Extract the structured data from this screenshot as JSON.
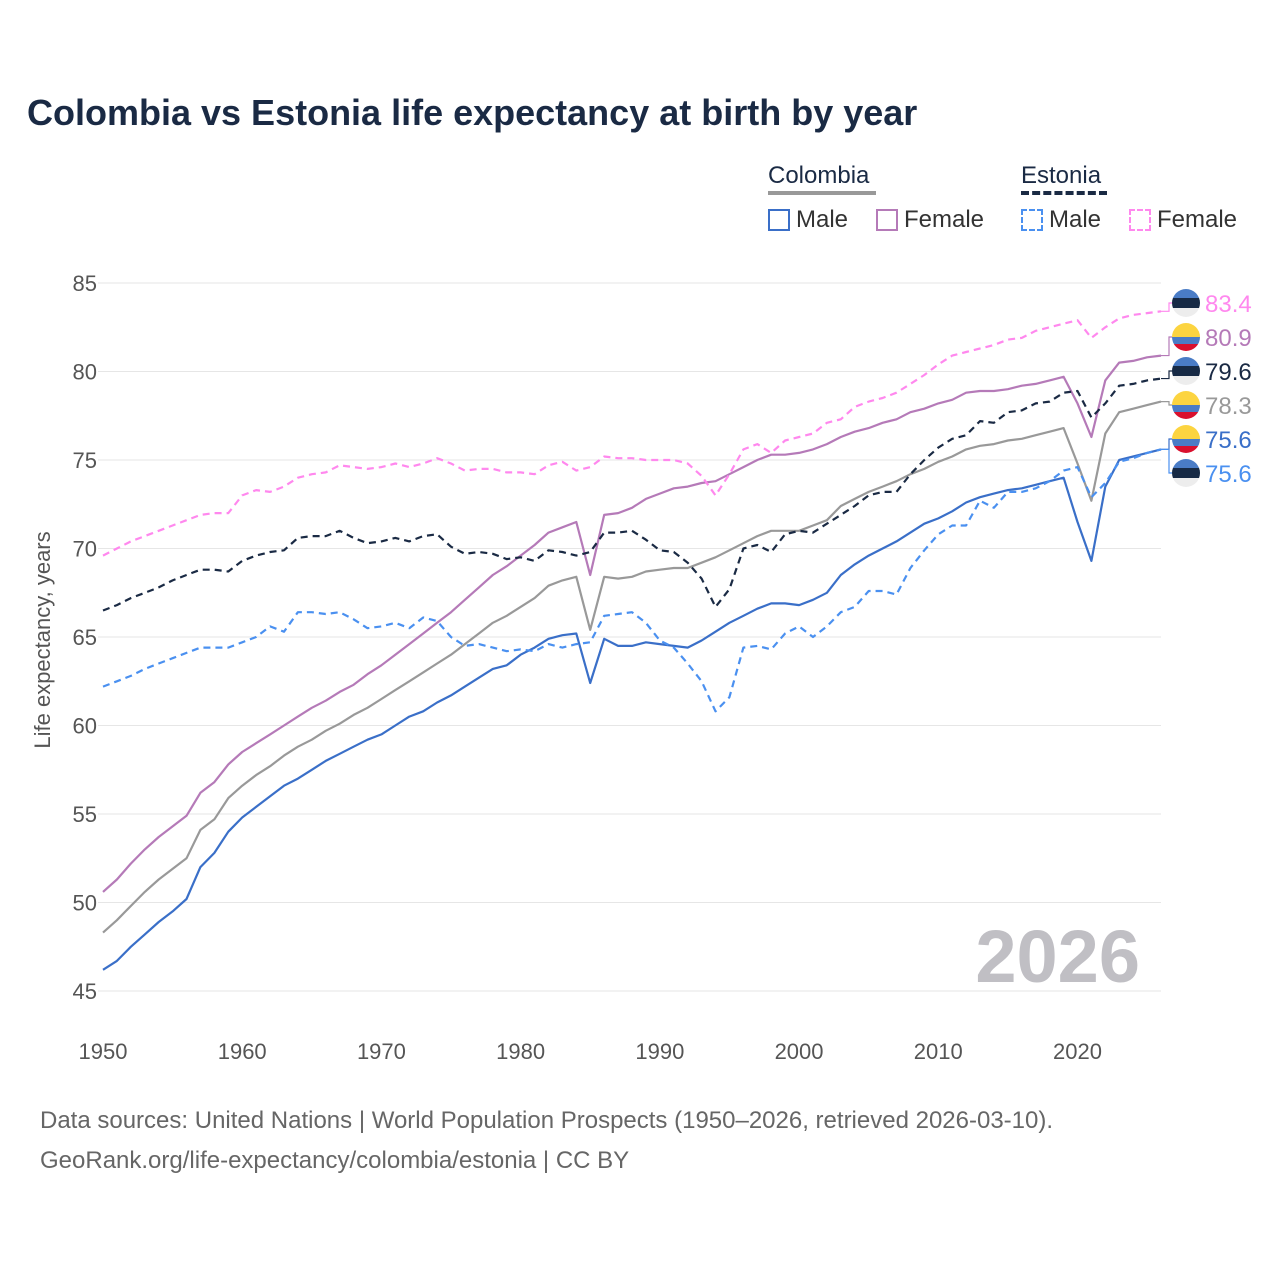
{
  "title": "Colombia vs Estonia life expectancy at birth by year",
  "footer": {
    "line1": "Data sources: United Nations | World Population Prospects (1950–2026, retrieved 2026-03-10).",
    "line2": "GeoRank.org/life-expectancy/colombia/estonia | CC BY"
  },
  "legend": {
    "groups": [
      {
        "label": "Colombia",
        "color": "#999999",
        "dash": false
      },
      {
        "label": "Estonia",
        "color": "#1a2a44",
        "dash": true
      }
    ],
    "items": [
      {
        "label": "Male",
        "color": "#3a6fc8",
        "dash": false
      },
      {
        "label": "Female",
        "color": "#b57ab8",
        "dash": false
      },
      {
        "label": "Male",
        "color": "#4a90f0",
        "dash": true
      },
      {
        "label": "Female",
        "color": "#ff88ee",
        "dash": true
      }
    ]
  },
  "chart_data": {
    "type": "line",
    "title": "Colombia vs Estonia life expectancy at birth by year",
    "xlabel": "",
    "ylabel": "Life expectancy, years",
    "xlim": [
      1950,
      2026
    ],
    "ylim": [
      45,
      85
    ],
    "xticks": [
      1950,
      1960,
      1970,
      1980,
      1990,
      2000,
      2010,
      2020
    ],
    "yticks": [
      45,
      50,
      55,
      60,
      65,
      70,
      75,
      80,
      85
    ],
    "grid": true,
    "year_watermark": "2026",
    "x_start": 1950,
    "series": [
      {
        "name": "Estonia Female",
        "country": "Estonia",
        "color": "#ff88ee",
        "dash": true,
        "end_label": "83.4",
        "values": [
          69.6,
          70.0,
          70.4,
          70.7,
          71.0,
          71.3,
          71.6,
          71.9,
          72.0,
          72.0,
          73.0,
          73.3,
          73.2,
          73.5,
          74.0,
          74.2,
          74.3,
          74.7,
          74.6,
          74.5,
          74.6,
          74.8,
          74.6,
          74.8,
          75.1,
          74.8,
          74.4,
          74.5,
          74.5,
          74.3,
          74.3,
          74.2,
          74.7,
          74.9,
          74.4,
          74.6,
          75.2,
          75.1,
          75.1,
          75.0,
          75.0,
          75.0,
          74.8,
          74.1,
          73.0,
          74.2,
          75.6,
          75.9,
          75.4,
          76.1,
          76.3,
          76.5,
          77.1,
          77.3,
          78.0,
          78.3,
          78.5,
          78.8,
          79.3,
          79.8,
          80.4,
          80.9,
          81.1,
          81.3,
          81.5,
          81.8,
          81.9,
          82.3,
          82.5,
          82.7,
          82.9,
          81.9,
          82.5,
          83.0,
          83.2,
          83.3,
          83.4
        ]
      },
      {
        "name": "Colombia Female",
        "country": "Colombia",
        "color": "#b57ab8",
        "dash": false,
        "end_label": "80.9",
        "values": [
          50.6,
          51.3,
          52.2,
          53.0,
          53.7,
          54.3,
          54.9,
          56.2,
          56.8,
          57.8,
          58.5,
          59.0,
          59.5,
          60.0,
          60.5,
          61.0,
          61.4,
          61.9,
          62.3,
          62.9,
          63.4,
          64.0,
          64.6,
          65.2,
          65.8,
          66.4,
          67.1,
          67.8,
          68.5,
          69.0,
          69.6,
          70.2,
          70.9,
          71.2,
          71.5,
          68.5,
          71.9,
          72.0,
          72.3,
          72.8,
          73.1,
          73.4,
          73.5,
          73.7,
          73.8,
          74.2,
          74.6,
          75.0,
          75.3,
          75.3,
          75.4,
          75.6,
          75.9,
          76.3,
          76.6,
          76.8,
          77.1,
          77.3,
          77.7,
          77.9,
          78.2,
          78.4,
          78.8,
          78.9,
          78.9,
          79.0,
          79.2,
          79.3,
          79.5,
          79.7,
          78.2,
          76.3,
          79.5,
          80.5,
          80.6,
          80.8,
          80.9
        ]
      },
      {
        "name": "Estonia",
        "country": "Estonia",
        "color": "#1a2a44",
        "dash": true,
        "end_label": "79.6",
        "values": [
          66.5,
          66.8,
          67.2,
          67.5,
          67.8,
          68.2,
          68.5,
          68.8,
          68.8,
          68.7,
          69.3,
          69.6,
          69.8,
          69.9,
          70.6,
          70.7,
          70.7,
          71.0,
          70.6,
          70.3,
          70.4,
          70.6,
          70.4,
          70.7,
          70.8,
          70.1,
          69.7,
          69.8,
          69.7,
          69.4,
          69.5,
          69.3,
          69.9,
          69.8,
          69.6,
          69.8,
          70.9,
          70.9,
          71.0,
          70.5,
          69.9,
          69.8,
          69.2,
          68.3,
          66.7,
          67.7,
          70.0,
          70.2,
          69.8,
          70.8,
          71.0,
          70.9,
          71.4,
          71.9,
          72.4,
          73.0,
          73.2,
          73.2,
          74.2,
          75.0,
          75.7,
          76.2,
          76.4,
          77.2,
          77.1,
          77.7,
          77.8,
          78.2,
          78.3,
          78.8,
          78.9,
          77.4,
          78.2,
          79.2,
          79.3,
          79.5,
          79.6
        ]
      },
      {
        "name": "Colombia",
        "country": "Colombia",
        "color": "#999999",
        "dash": false,
        "end_label": "78.3",
        "values": [
          48.3,
          49.0,
          49.8,
          50.6,
          51.3,
          51.9,
          52.5,
          54.1,
          54.7,
          55.9,
          56.6,
          57.2,
          57.7,
          58.3,
          58.8,
          59.2,
          59.7,
          60.1,
          60.6,
          61.0,
          61.5,
          62.0,
          62.5,
          63.0,
          63.5,
          64.0,
          64.6,
          65.2,
          65.8,
          66.2,
          66.7,
          67.2,
          67.9,
          68.2,
          68.4,
          65.4,
          68.4,
          68.3,
          68.4,
          68.7,
          68.8,
          68.9,
          68.9,
          69.2,
          69.5,
          69.9,
          70.3,
          70.7,
          71.0,
          71.0,
          71.0,
          71.3,
          71.6,
          72.4,
          72.8,
          73.2,
          73.5,
          73.8,
          74.2,
          74.5,
          74.9,
          75.2,
          75.6,
          75.8,
          75.9,
          76.1,
          76.2,
          76.4,
          76.6,
          76.8,
          74.8,
          72.7,
          76.5,
          77.7,
          77.9,
          78.1,
          78.3
        ]
      },
      {
        "name": "Colombia Male",
        "country": "Colombia",
        "color": "#3a6fc8",
        "dash": false,
        "end_label": "75.6",
        "values": [
          46.2,
          46.7,
          47.5,
          48.2,
          48.9,
          49.5,
          50.2,
          52.0,
          52.8,
          54.0,
          54.8,
          55.4,
          56.0,
          56.6,
          57.0,
          57.5,
          58.0,
          58.4,
          58.8,
          59.2,
          59.5,
          60.0,
          60.5,
          60.8,
          61.3,
          61.7,
          62.2,
          62.7,
          63.2,
          63.4,
          64.0,
          64.4,
          64.9,
          65.1,
          65.2,
          62.4,
          64.9,
          64.5,
          64.5,
          64.7,
          64.6,
          64.5,
          64.4,
          64.8,
          65.3,
          65.8,
          66.2,
          66.6,
          66.9,
          66.9,
          66.8,
          67.1,
          67.5,
          68.5,
          69.1,
          69.6,
          70.0,
          70.4,
          70.9,
          71.4,
          71.7,
          72.1,
          72.6,
          72.9,
          73.1,
          73.3,
          73.4,
          73.6,
          73.8,
          74.0,
          71.5,
          69.3,
          73.5,
          75.0,
          75.2,
          75.4,
          75.6
        ]
      },
      {
        "name": "Estonia Male",
        "country": "Estonia",
        "color": "#4a90f0",
        "dash": true,
        "end_label": "75.6",
        "values": [
          62.2,
          62.5,
          62.8,
          63.2,
          63.5,
          63.8,
          64.1,
          64.4,
          64.4,
          64.4,
          64.7,
          65.0,
          65.6,
          65.3,
          66.4,
          66.4,
          66.3,
          66.4,
          66.0,
          65.5,
          65.6,
          65.8,
          65.5,
          66.1,
          65.9,
          65.0,
          64.5,
          64.6,
          64.4,
          64.2,
          64.3,
          64.2,
          64.6,
          64.4,
          64.6,
          64.7,
          66.2,
          66.3,
          66.4,
          65.8,
          64.8,
          64.4,
          63.5,
          62.5,
          60.8,
          61.6,
          64.4,
          64.5,
          64.3,
          65.2,
          65.6,
          65.0,
          65.6,
          66.4,
          66.7,
          67.6,
          67.6,
          67.4,
          68.9,
          69.9,
          70.8,
          71.3,
          71.3,
          72.7,
          72.3,
          73.2,
          73.2,
          73.4,
          73.8,
          74.4,
          74.6,
          72.9,
          73.7,
          74.9,
          75.1,
          75.4,
          75.6
        ]
      }
    ]
  }
}
